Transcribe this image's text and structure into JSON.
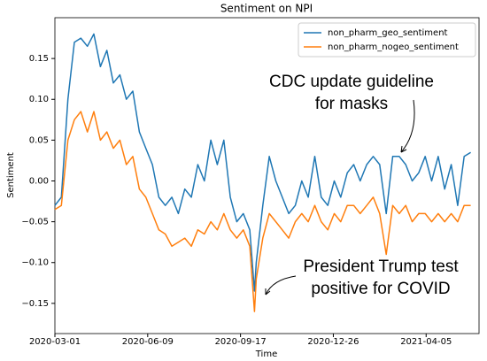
{
  "chart_data": {
    "type": "line",
    "title": "Sentiment on NPI",
    "xlabel": "Time",
    "ylabel": "Sentiment",
    "x": [
      "2020-03-01",
      "2020-03-08",
      "2020-03-15",
      "2020-03-22",
      "2020-03-29",
      "2020-04-05",
      "2020-04-12",
      "2020-04-19",
      "2020-04-26",
      "2020-05-03",
      "2020-05-10",
      "2020-05-17",
      "2020-05-24",
      "2020-05-31",
      "2020-06-07",
      "2020-06-14",
      "2020-06-21",
      "2020-06-28",
      "2020-07-05",
      "2020-07-12",
      "2020-07-19",
      "2020-07-26",
      "2020-08-02",
      "2020-08-09",
      "2020-08-16",
      "2020-08-23",
      "2020-08-30",
      "2020-09-06",
      "2020-09-13",
      "2020-09-20",
      "2020-09-27",
      "2020-10-02",
      "2020-10-04",
      "2020-10-11",
      "2020-10-18",
      "2020-10-25",
      "2020-11-01",
      "2020-11-08",
      "2020-11-15",
      "2020-11-22",
      "2020-11-29",
      "2020-12-06",
      "2020-12-13",
      "2020-12-20",
      "2020-12-27",
      "2021-01-03",
      "2021-01-10",
      "2021-01-17",
      "2021-01-24",
      "2021-01-31",
      "2021-02-07",
      "2021-02-14",
      "2021-02-21",
      "2021-02-28",
      "2021-03-07",
      "2021-03-14",
      "2021-03-21",
      "2021-03-28",
      "2021-04-04",
      "2021-04-11",
      "2021-04-18",
      "2021-04-25",
      "2021-05-02",
      "2021-05-09",
      "2021-05-16",
      "2021-05-23"
    ],
    "series": [
      {
        "name": "non_pharm_geo_sentiment",
        "color": "#1f77b4",
        "values": [
          -0.03,
          -0.02,
          0.1,
          0.17,
          0.175,
          0.165,
          0.18,
          0.14,
          0.16,
          0.12,
          0.13,
          0.1,
          0.11,
          0.06,
          0.04,
          0.02,
          -0.02,
          -0.03,
          -0.02,
          -0.04,
          -0.01,
          -0.02,
          0.02,
          0.0,
          0.05,
          0.02,
          0.05,
          -0.02,
          -0.05,
          -0.04,
          -0.06,
          -0.135,
          -0.1,
          -0.03,
          0.03,
          0.0,
          -0.02,
          -0.04,
          -0.03,
          0.0,
          -0.02,
          0.03,
          -0.02,
          -0.03,
          0.0,
          -0.02,
          0.01,
          0.02,
          0.0,
          0.02,
          0.03,
          0.02,
          -0.04,
          0.03,
          0.03,
          0.02,
          0.0,
          0.01,
          0.03,
          0.0,
          0.03,
          -0.01,
          0.02,
          -0.03,
          0.03,
          0.035
        ]
      },
      {
        "name": "non_pharm_nogeo_sentiment",
        "color": "#ff7f0e",
        "values": [
          -0.035,
          -0.03,
          0.05,
          0.075,
          0.085,
          0.06,
          0.085,
          0.05,
          0.06,
          0.04,
          0.05,
          0.02,
          0.03,
          -0.01,
          -0.02,
          -0.04,
          -0.06,
          -0.065,
          -0.08,
          -0.075,
          -0.07,
          -0.08,
          -0.06,
          -0.065,
          -0.05,
          -0.06,
          -0.04,
          -0.06,
          -0.07,
          -0.06,
          -0.08,
          -0.16,
          -0.12,
          -0.07,
          -0.04,
          -0.05,
          -0.06,
          -0.07,
          -0.05,
          -0.04,
          -0.05,
          -0.03,
          -0.05,
          -0.06,
          -0.04,
          -0.05,
          -0.03,
          -0.03,
          -0.04,
          -0.03,
          -0.02,
          -0.04,
          -0.09,
          -0.03,
          -0.04,
          -0.03,
          -0.05,
          -0.04,
          -0.04,
          -0.05,
          -0.04,
          -0.05,
          -0.04,
          -0.05,
          -0.03,
          -0.03
        ]
      }
    ],
    "xlim": [
      "2020-03-01",
      "2021-06-01"
    ],
    "xticks": [
      "2020-03-01",
      "2020-06-09",
      "2020-09-17",
      "2020-12-26",
      "2021-04-05"
    ],
    "ylim": [
      -0.187,
      0.2
    ],
    "yticks": [
      {
        "value": -0.15,
        "label": "−0.15"
      },
      {
        "value": -0.1,
        "label": "−0.10"
      },
      {
        "value": -0.05,
        "label": "−0.05"
      },
      {
        "value": 0,
        "label": "0.00"
      },
      0.05,
      {
        "value": 0.1,
        "label": "0.10"
      },
      0.15
    ],
    "legend": "upper right",
    "annotations": [
      {
        "lines": [
          "CDC update guideline",
          "for masks"
        ]
      },
      {
        "lines": [
          "President Trump test",
          "positive for COVID"
        ]
      }
    ]
  }
}
